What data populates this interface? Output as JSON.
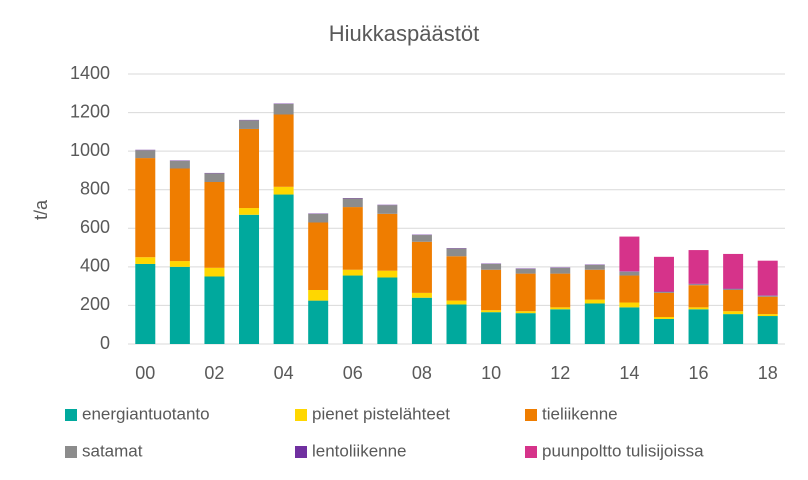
{
  "chart_data": {
    "type": "stacked_bar",
    "title": "Hiukkaspäästöt",
    "y_label": "t/a",
    "categories": [
      "00",
      null,
      "02",
      null,
      "04",
      null,
      "06",
      null,
      "08",
      null,
      "10",
      null,
      "12",
      null,
      "14",
      null,
      "16",
      null,
      "18"
    ],
    "series": [
      {
        "name": "energiantuotanto",
        "color": "#00a99d",
        "values": [
          415,
          400,
          350,
          670,
          775,
          225,
          355,
          345,
          240,
          205,
          165,
          160,
          180,
          210,
          190,
          130,
          180,
          155,
          145
        ]
      },
      {
        "name": "pienet pistelähteet",
        "color": "#ffd700",
        "values": [
          35,
          30,
          45,
          35,
          40,
          55,
          30,
          35,
          25,
          20,
          10,
          10,
          10,
          20,
          25,
          10,
          10,
          15,
          10
        ]
      },
      {
        "name": "tieliikenne",
        "color": "#ef7d00",
        "values": [
          514,
          480,
          445,
          410,
          375,
          350,
          325,
          295,
          265,
          230,
          210,
          195,
          175,
          155,
          140,
          125,
          115,
          110,
          90
        ]
      },
      {
        "name": "satamat",
        "color": "#8c8c8c",
        "values": [
          41,
          40,
          45,
          45,
          55,
          45,
          45,
          45,
          35,
          40,
          30,
          25,
          30,
          25,
          20,
          5,
          5,
          5,
          5
        ]
      },
      {
        "name": "lentoliikenne",
        "color": "#7030a0",
        "values": [
          2,
          2,
          2,
          2,
          2,
          2,
          2,
          2,
          2,
          2,
          2,
          2,
          2,
          2,
          2,
          2,
          2,
          2,
          2
        ]
      },
      {
        "name": "puunpoltto tulisijoissa",
        "color": "#d6338a",
        "values": [
          0,
          0,
          0,
          0,
          0,
          0,
          0,
          0,
          0,
          0,
          0,
          0,
          0,
          0,
          180,
          180,
          175,
          180,
          180
        ]
      }
    ],
    "ylim": [
      0,
      1400
    ],
    "yticks": [
      0,
      200,
      400,
      600,
      800,
      1000,
      1200,
      1400
    ],
    "grid": true
  }
}
